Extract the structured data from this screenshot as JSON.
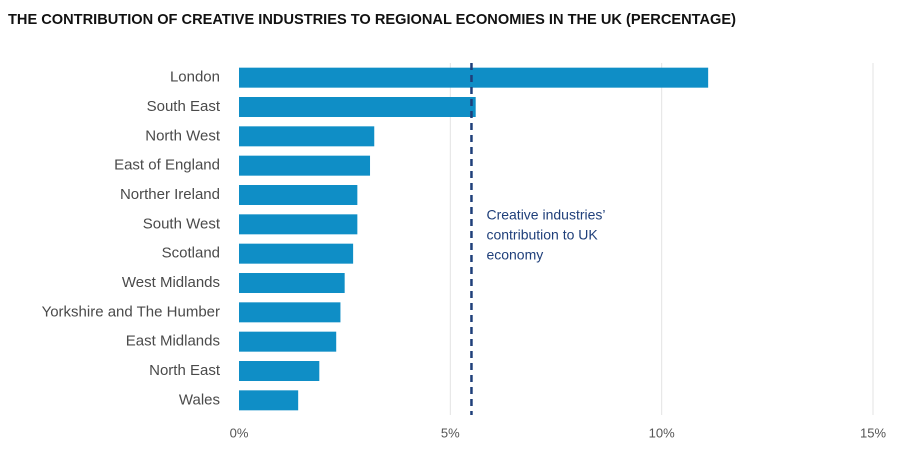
{
  "chart_data": {
    "type": "bar",
    "orientation": "horizontal",
    "title": "THE CONTRIBUTION OF CREATIVE INDUSTRIES TO REGIONAL ECONOMIES IN THE UK (PERCENTAGE)",
    "categories": [
      "London",
      "South East",
      "North West",
      "East of England",
      "Norther Ireland",
      "South West",
      "Scotland",
      "West Midlands",
      "Yorkshire and The Humber",
      "East Midlands",
      "North East",
      "Wales"
    ],
    "values": [
      11.1,
      5.6,
      3.2,
      3.1,
      2.8,
      2.8,
      2.7,
      2.5,
      2.4,
      2.3,
      1.9,
      1.4
    ],
    "color": "#0f8ec6",
    "xlim": [
      0,
      15
    ],
    "xticks": [
      {
        "value": 0,
        "label": "0%"
      },
      {
        "value": 5,
        "label": "5%"
      },
      {
        "value": 10,
        "label": "10%"
      },
      {
        "value": 15,
        "label": "15%"
      }
    ],
    "grid": true,
    "reference_line": {
      "value": 5.5,
      "color": "#1f3f7a",
      "label": [
        "Creative industries’",
        "contribution to UK",
        "economy"
      ]
    }
  }
}
